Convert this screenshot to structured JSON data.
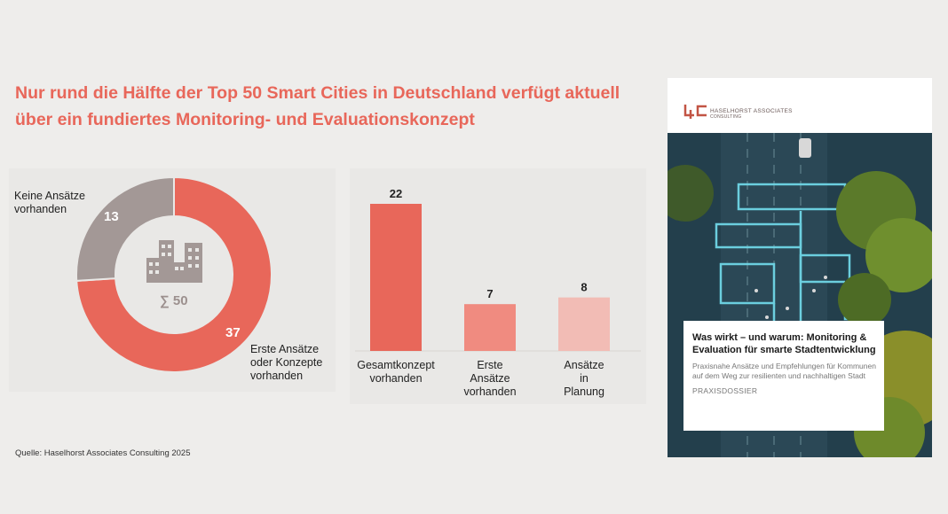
{
  "title": "Nur rund die Hälfte der Top 50 Smart Cities in Deutschland verfügt aktuell über ein fundiertes Monitoring- und Evaluationskonzept",
  "colors": {
    "accent": "#e8675a",
    "bar_mid": "#f08b80",
    "bar_light": "#f2bcb5",
    "gray": "#a39896"
  },
  "chart_data": [
    {
      "type": "pie",
      "title": "",
      "center_label": "∑ 50",
      "center_icon": "city-buildings-icon",
      "slices": [
        {
          "label": "Erste Ansätze oder Konzepte vorhanden",
          "value": 37
        },
        {
          "label": "Keine Ansätze vorhanden",
          "value": 13
        }
      ]
    },
    {
      "type": "bar",
      "title": "",
      "categories": [
        "Gesamtkonzept vorhanden",
        "Erste Ansätze vorhanden",
        "Ansätze in Planung"
      ],
      "values": [
        22,
        7,
        8
      ],
      "xlabel": "",
      "ylabel": "",
      "ylim": [
        0,
        22
      ],
      "grid": false
    }
  ],
  "source": "Quelle: Haselhorst Associates Consulting 2025",
  "cover": {
    "logo_line1": "HASELHORST ASSOCIATES",
    "logo_line2": "CONSULTING",
    "title": "Was wirkt – und warum: Monitoring & Evaluation für smarte Stadtentwicklung",
    "subtitle": "Praxisnahe Ansätze und Empfehlungen für Kommunen auf dem Weg zur resilienten und nachhaltigen Stadt",
    "tag": "PRAXISDOSSIER"
  }
}
